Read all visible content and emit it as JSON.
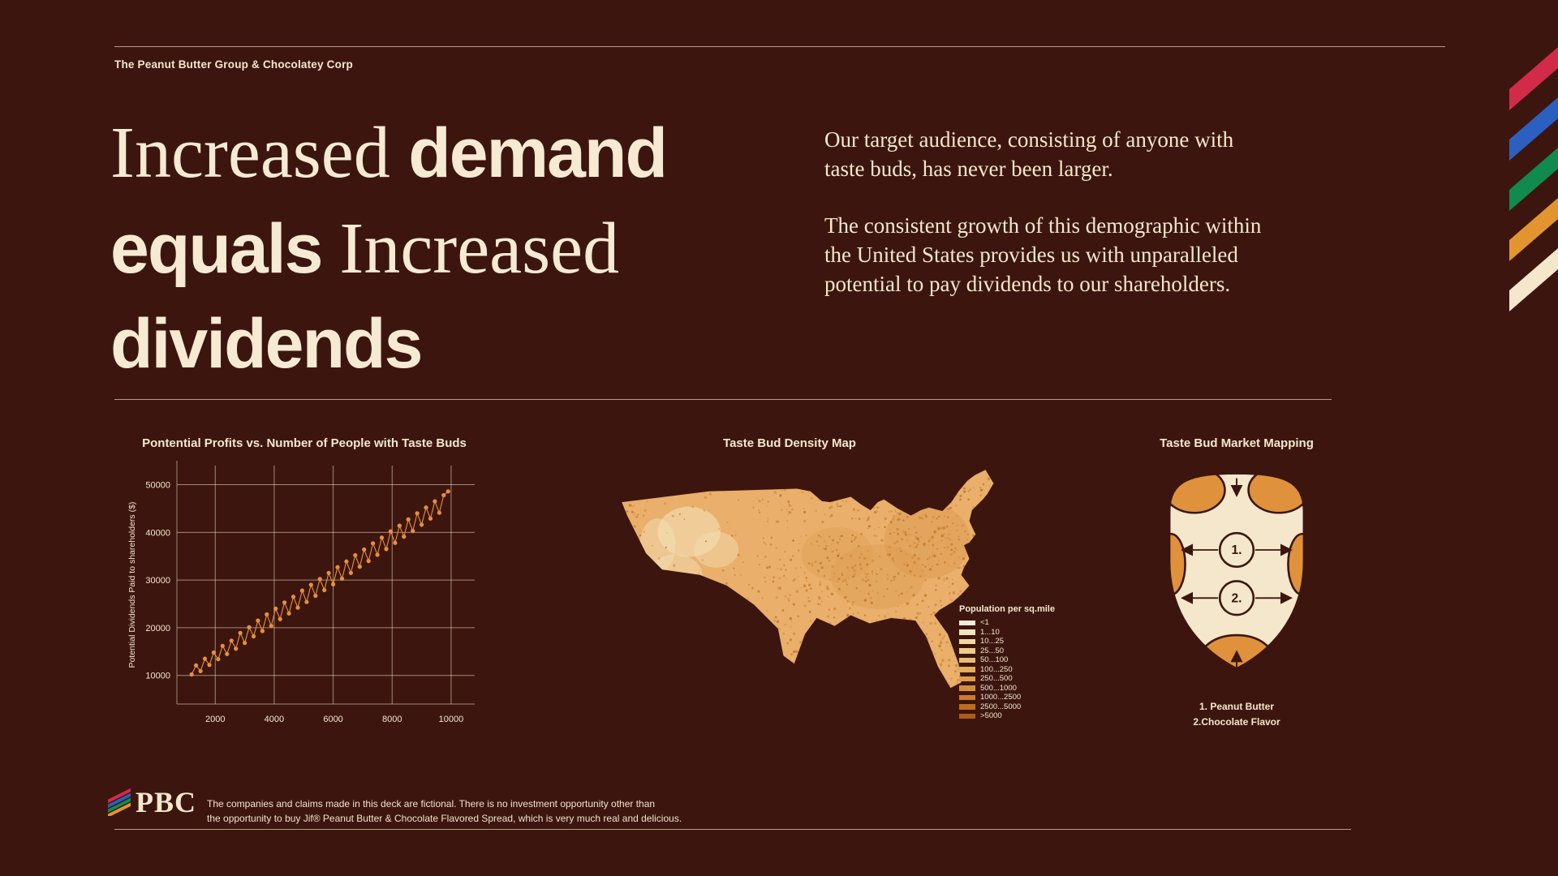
{
  "page": {
    "background": "#3C160E",
    "cream": "#F4E7CC",
    "accent_orange": "#E78F3E"
  },
  "header": {
    "brand": "The Peanut Butter Group & Chocolatey Corp"
  },
  "corner_stripes": {
    "colors": [
      "#D22B49",
      "#2B5FC0",
      "#108A4E",
      "#E2952F",
      "#F4E7CC"
    ]
  },
  "headline": {
    "lines": [
      [
        {
          "text": "Increased ",
          "style": "serif"
        },
        {
          "text": "demand",
          "style": "sans"
        }
      ],
      [
        {
          "text": "equals ",
          "style": "sans"
        },
        {
          "text": "Increased",
          "style": "serif"
        }
      ],
      [
        {
          "text": "dividends",
          "style": "sans"
        }
      ]
    ]
  },
  "intro": {
    "para1": "Our target audience, consisting of anyone with taste buds, has never been larger.",
    "para2": "The consistent growth of this demographic within the United States provides us with unparalleled potential to pay dividends to our shareholders."
  },
  "chart_data": {
    "type": "scatter",
    "title": "Pontential Profits vs. Number of People with Taste Buds",
    "xlabel": "",
    "ylabel": "Potential Dividends Paid to shareholders ($)",
    "xticks": [
      2000,
      4000,
      6000,
      8000,
      10000
    ],
    "yticks": [
      10000,
      20000,
      30000,
      40000,
      50000
    ],
    "xlim": [
      700,
      10800
    ],
    "ylim": [
      4000,
      54000
    ],
    "line_connected": true,
    "point_color": "#E78F3E",
    "points": [
      [
        1200,
        10200
      ],
      [
        1350,
        12100
      ],
      [
        1500,
        10900
      ],
      [
        1650,
        13500
      ],
      [
        1800,
        12200
      ],
      [
        1950,
        14800
      ],
      [
        2100,
        13400
      ],
      [
        2250,
        16200
      ],
      [
        2400,
        14500
      ],
      [
        2550,
        17300
      ],
      [
        2700,
        15600
      ],
      [
        2850,
        18900
      ],
      [
        3000,
        16800
      ],
      [
        3150,
        20100
      ],
      [
        3300,
        18200
      ],
      [
        3450,
        21500
      ],
      [
        3600,
        19300
      ],
      [
        3750,
        22800
      ],
      [
        3900,
        20400
      ],
      [
        4050,
        24000
      ],
      [
        4200,
        21800
      ],
      [
        4350,
        25300
      ],
      [
        4500,
        23000
      ],
      [
        4650,
        26500
      ],
      [
        4800,
        24200
      ],
      [
        4950,
        27800
      ],
      [
        5100,
        25400
      ],
      [
        5250,
        29000
      ],
      [
        5400,
        26700
      ],
      [
        5550,
        30200
      ],
      [
        5700,
        27900
      ],
      [
        5850,
        31500
      ],
      [
        6000,
        29100
      ],
      [
        6150,
        32700
      ],
      [
        6300,
        30300
      ],
      [
        6450,
        33900
      ],
      [
        6600,
        31500
      ],
      [
        6750,
        35200
      ],
      [
        6900,
        32800
      ],
      [
        7050,
        36400
      ],
      [
        7200,
        34000
      ],
      [
        7350,
        37700
      ],
      [
        7500,
        35300
      ],
      [
        7650,
        38900
      ],
      [
        7800,
        36500
      ],
      [
        7950,
        40200
      ],
      [
        8100,
        37800
      ],
      [
        8250,
        41400
      ],
      [
        8400,
        39100
      ],
      [
        8550,
        42700
      ],
      [
        8700,
        40300
      ],
      [
        8850,
        44000
      ],
      [
        9000,
        41600
      ],
      [
        9150,
        45200
      ],
      [
        9300,
        42900
      ],
      [
        9450,
        46500
      ],
      [
        9600,
        44100
      ],
      [
        9750,
        47800
      ],
      [
        9900,
        48600
      ]
    ]
  },
  "map": {
    "title": "Taste Bud Density Map",
    "legend_title": "Population per sq.mile",
    "base_color": "#E9AF6B",
    "legend": [
      {
        "label": "<1",
        "color": "#F7EDD6"
      },
      {
        "label": "1...10",
        "color": "#F4E3BC"
      },
      {
        "label": "10...25",
        "color": "#F1D8A3"
      },
      {
        "label": "25...50",
        "color": "#EDCB8B"
      },
      {
        "label": "50...100",
        "color": "#E9BD74"
      },
      {
        "label": "100...250",
        "color": "#E4AE5F"
      },
      {
        "label": "250...500",
        "color": "#DE9E4B"
      },
      {
        "label": "500...1000",
        "color": "#D68D39"
      },
      {
        "label": "1000...2500",
        "color": "#CC7C2B"
      },
      {
        "label": "2500...5000",
        "color": "#BF6B20"
      },
      {
        "label": ">5000",
        "color": "#B05C18"
      }
    ]
  },
  "tongue": {
    "title": "Taste Bud Market Mapping",
    "marker1": "1.",
    "marker2": "2.",
    "caption_lines": [
      "1. Peanut Butter",
      "2.Chocolate Flavor"
    ]
  },
  "footer": {
    "logo": "PBC",
    "disclaimer_lines": [
      "The companies and claims made in this deck are fictional. There is no investment opportunity other than",
      "the opportunity to buy Jif® Peanut Butter & Chocolate Flavored Spread, which is very much real and delicious."
    ]
  }
}
